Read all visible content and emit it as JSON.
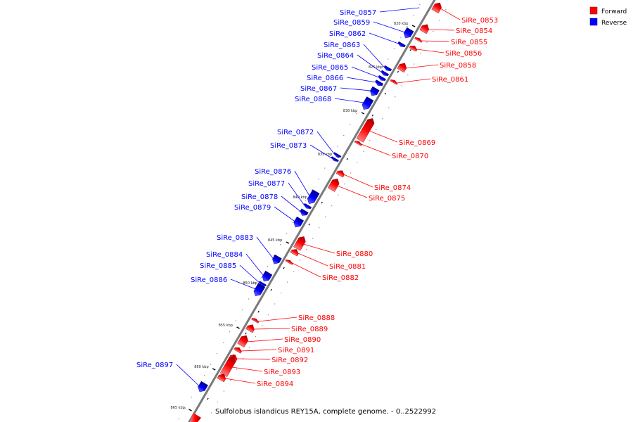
{
  "legend": {
    "forward_label": "Forward",
    "reverse_label": "Reverse",
    "forward_color": "#ff0000",
    "reverse_color": "#0000ff"
  },
  "caption": "Sulfolobus islandicus REY15A, complete genome. - 0..2522992",
  "ticks": [
    "820 kbp",
    "825 kbp",
    "830 kbp",
    "835 kbp",
    "840 kbp",
    "845 kbp",
    "850 kbp",
    "855 kbp",
    "860 kbp",
    "865 kbp"
  ],
  "genes": [
    {
      "name": "SiRe_0853",
      "strand": "forward"
    },
    {
      "name": "SiRe_0854",
      "strand": "forward"
    },
    {
      "name": "SiRe_0855",
      "strand": "forward"
    },
    {
      "name": "SiRe_0856",
      "strand": "forward"
    },
    {
      "name": "SiRe_0857",
      "strand": "reverse"
    },
    {
      "name": "SiRe_0858",
      "strand": "forward"
    },
    {
      "name": "SiRe_0859",
      "strand": "reverse"
    },
    {
      "name": "SiRe_0861",
      "strand": "forward"
    },
    {
      "name": "SiRe_0862",
      "strand": "reverse"
    },
    {
      "name": "SiRe_0863",
      "strand": "reverse"
    },
    {
      "name": "SiRe_0864",
      "strand": "reverse"
    },
    {
      "name": "SiRe_0865",
      "strand": "reverse"
    },
    {
      "name": "SiRe_0866",
      "strand": "reverse"
    },
    {
      "name": "SiRe_0867",
      "strand": "reverse"
    },
    {
      "name": "SiRe_0868",
      "strand": "reverse"
    },
    {
      "name": "SiRe_0869",
      "strand": "forward"
    },
    {
      "name": "SiRe_0870",
      "strand": "forward"
    },
    {
      "name": "SiRe_0872",
      "strand": "reverse"
    },
    {
      "name": "SiRe_0873",
      "strand": "reverse"
    },
    {
      "name": "SiRe_0874",
      "strand": "forward"
    },
    {
      "name": "SiRe_0875",
      "strand": "forward"
    },
    {
      "name": "SiRe_0876",
      "strand": "reverse"
    },
    {
      "name": "SiRe_0877",
      "strand": "reverse"
    },
    {
      "name": "SiRe_0878",
      "strand": "reverse"
    },
    {
      "name": "SiRe_0879",
      "strand": "reverse"
    },
    {
      "name": "SiRe_0880",
      "strand": "forward"
    },
    {
      "name": "SiRe_0881",
      "strand": "forward"
    },
    {
      "name": "SiRe_0882",
      "strand": "forward"
    },
    {
      "name": "SiRe_0883",
      "strand": "reverse"
    },
    {
      "name": "SiRe_0884",
      "strand": "reverse"
    },
    {
      "name": "SiRe_0885",
      "strand": "reverse"
    },
    {
      "name": "SiRe_0886",
      "strand": "reverse"
    },
    {
      "name": "SiRe_0888",
      "strand": "forward"
    },
    {
      "name": "SiRe_0889",
      "strand": "forward"
    },
    {
      "name": "SiRe_0890",
      "strand": "forward"
    },
    {
      "name": "SiRe_0891",
      "strand": "forward"
    },
    {
      "name": "SiRe_0892",
      "strand": "forward"
    },
    {
      "name": "SiRe_0893",
      "strand": "forward"
    },
    {
      "name": "SiRe_0894",
      "strand": "forward"
    },
    {
      "name": "SiRe_0897",
      "strand": "reverse"
    }
  ]
}
